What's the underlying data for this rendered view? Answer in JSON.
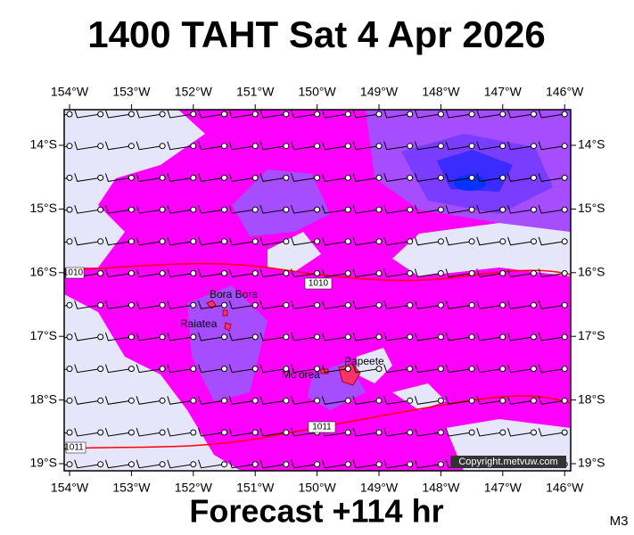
{
  "header": {
    "title": "1400 TAHT Sat 4 Apr 2026"
  },
  "map": {
    "lon_labels": [
      "154°W",
      "153°W",
      "152°W",
      "151°W",
      "150°W",
      "149°W",
      "148°W",
      "147°W",
      "146°W"
    ],
    "lat_labels": [
      "14°S",
      "15°S",
      "16°S",
      "17°S",
      "18°S",
      "19°S"
    ],
    "places": [
      "Bora Bora",
      "Raiatea",
      "Mo'orea",
      "Papeete"
    ],
    "isobar_labels": [
      "1010",
      "1010",
      "1011",
      "1011"
    ],
    "copyright": "Copyright.metvuw.com"
  },
  "footer": {
    "caption": "Forecast +114 hr",
    "model": "M3"
  }
}
